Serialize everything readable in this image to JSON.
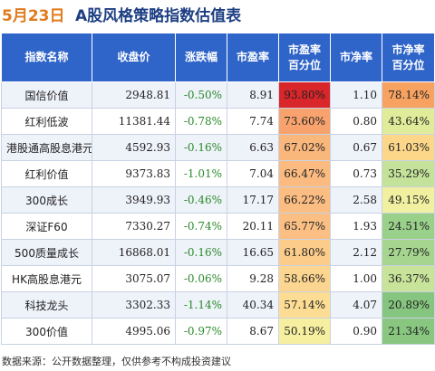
{
  "title": {
    "date": "5月23日",
    "text": "A股风格策略指数估值表"
  },
  "table": {
    "headers": [
      "指数名称",
      "收盘价",
      "涨跌幅",
      "市盈率",
      "市盈率百分位",
      "市净率",
      "市净率百分位"
    ],
    "rows": [
      {
        "name": "国信价值",
        "close": "2948.81",
        "change": "-0.50%",
        "pe": "8.91",
        "pe_pct": "93.80%",
        "pb": "1.10",
        "pb_pct": "78.14%",
        "pe_color": "#d8262a",
        "pb_color": "#f7a261"
      },
      {
        "name": "红利低波",
        "close": "11381.44",
        "change": "-0.78%",
        "pe": "7.74",
        "pe_pct": "73.60%",
        "pb": "0.80",
        "pb_pct": "43.64%",
        "pe_color": "#f8a36d",
        "pb_color": "#e1ec9a"
      },
      {
        "name": "港股通高股息港元",
        "close": "4592.93",
        "change": "-0.16%",
        "pe": "6.63",
        "pe_pct": "67.02%",
        "pb": "0.67",
        "pb_pct": "61.03%",
        "pe_color": "#fab77c",
        "pb_color": "#fcd78a"
      },
      {
        "name": "红利价值",
        "close": "9373.83",
        "change": "-1.01%",
        "pe": "7.04",
        "pe_pct": "66.47%",
        "pb": "0.73",
        "pb_pct": "35.29%",
        "pe_color": "#fbbb80",
        "pb_color": "#c4e29a"
      },
      {
        "name": "300成长",
        "close": "3949.93",
        "change": "-0.46%",
        "pe": "17.17",
        "pe_pct": "66.22%",
        "pb": "2.58",
        "pb_pct": "49.15%",
        "pe_color": "#fbbd82",
        "pb_color": "#f1f0a0"
      },
      {
        "name": "深证F60",
        "close": "7330.27",
        "change": "-0.74%",
        "pe": "20.11",
        "pe_pct": "65.77%",
        "pb": "1.93",
        "pb_pct": "24.51%",
        "pe_color": "#fbbf84",
        "pb_color": "#99d08a"
      },
      {
        "name": "500质量成长",
        "close": "16868.01",
        "change": "-0.16%",
        "pe": "16.65",
        "pe_pct": "61.80%",
        "pb": "2.12",
        "pb_pct": "27.79%",
        "pe_color": "#fccc8a",
        "pb_color": "#a6d58f"
      },
      {
        "name": "HK高股息港元",
        "close": "3075.07",
        "change": "-0.06%",
        "pe": "9.28",
        "pe_pct": "58.66%",
        "pb": "1.00",
        "pb_pct": "36.37%",
        "pe_color": "#fcd690",
        "pb_color": "#c8e39a"
      },
      {
        "name": "科技龙头",
        "close": "3302.33",
        "change": "-1.14%",
        "pe": "40.34",
        "pe_pct": "57.14%",
        "pb": "4.07",
        "pb_pct": "20.89%",
        "pe_color": "#fcdd93",
        "pb_color": "#86c57f"
      },
      {
        "name": "300价值",
        "close": "4995.06",
        "change": "-0.97%",
        "pe": "8.67",
        "pe_pct": "50.19%",
        "pb": "0.90",
        "pb_pct": "21.34%",
        "pe_color": "#f6efa0",
        "pb_color": "#89c781"
      }
    ]
  },
  "footer": "数据来源：公开数据整理，仅供参考不构成投资建议"
}
